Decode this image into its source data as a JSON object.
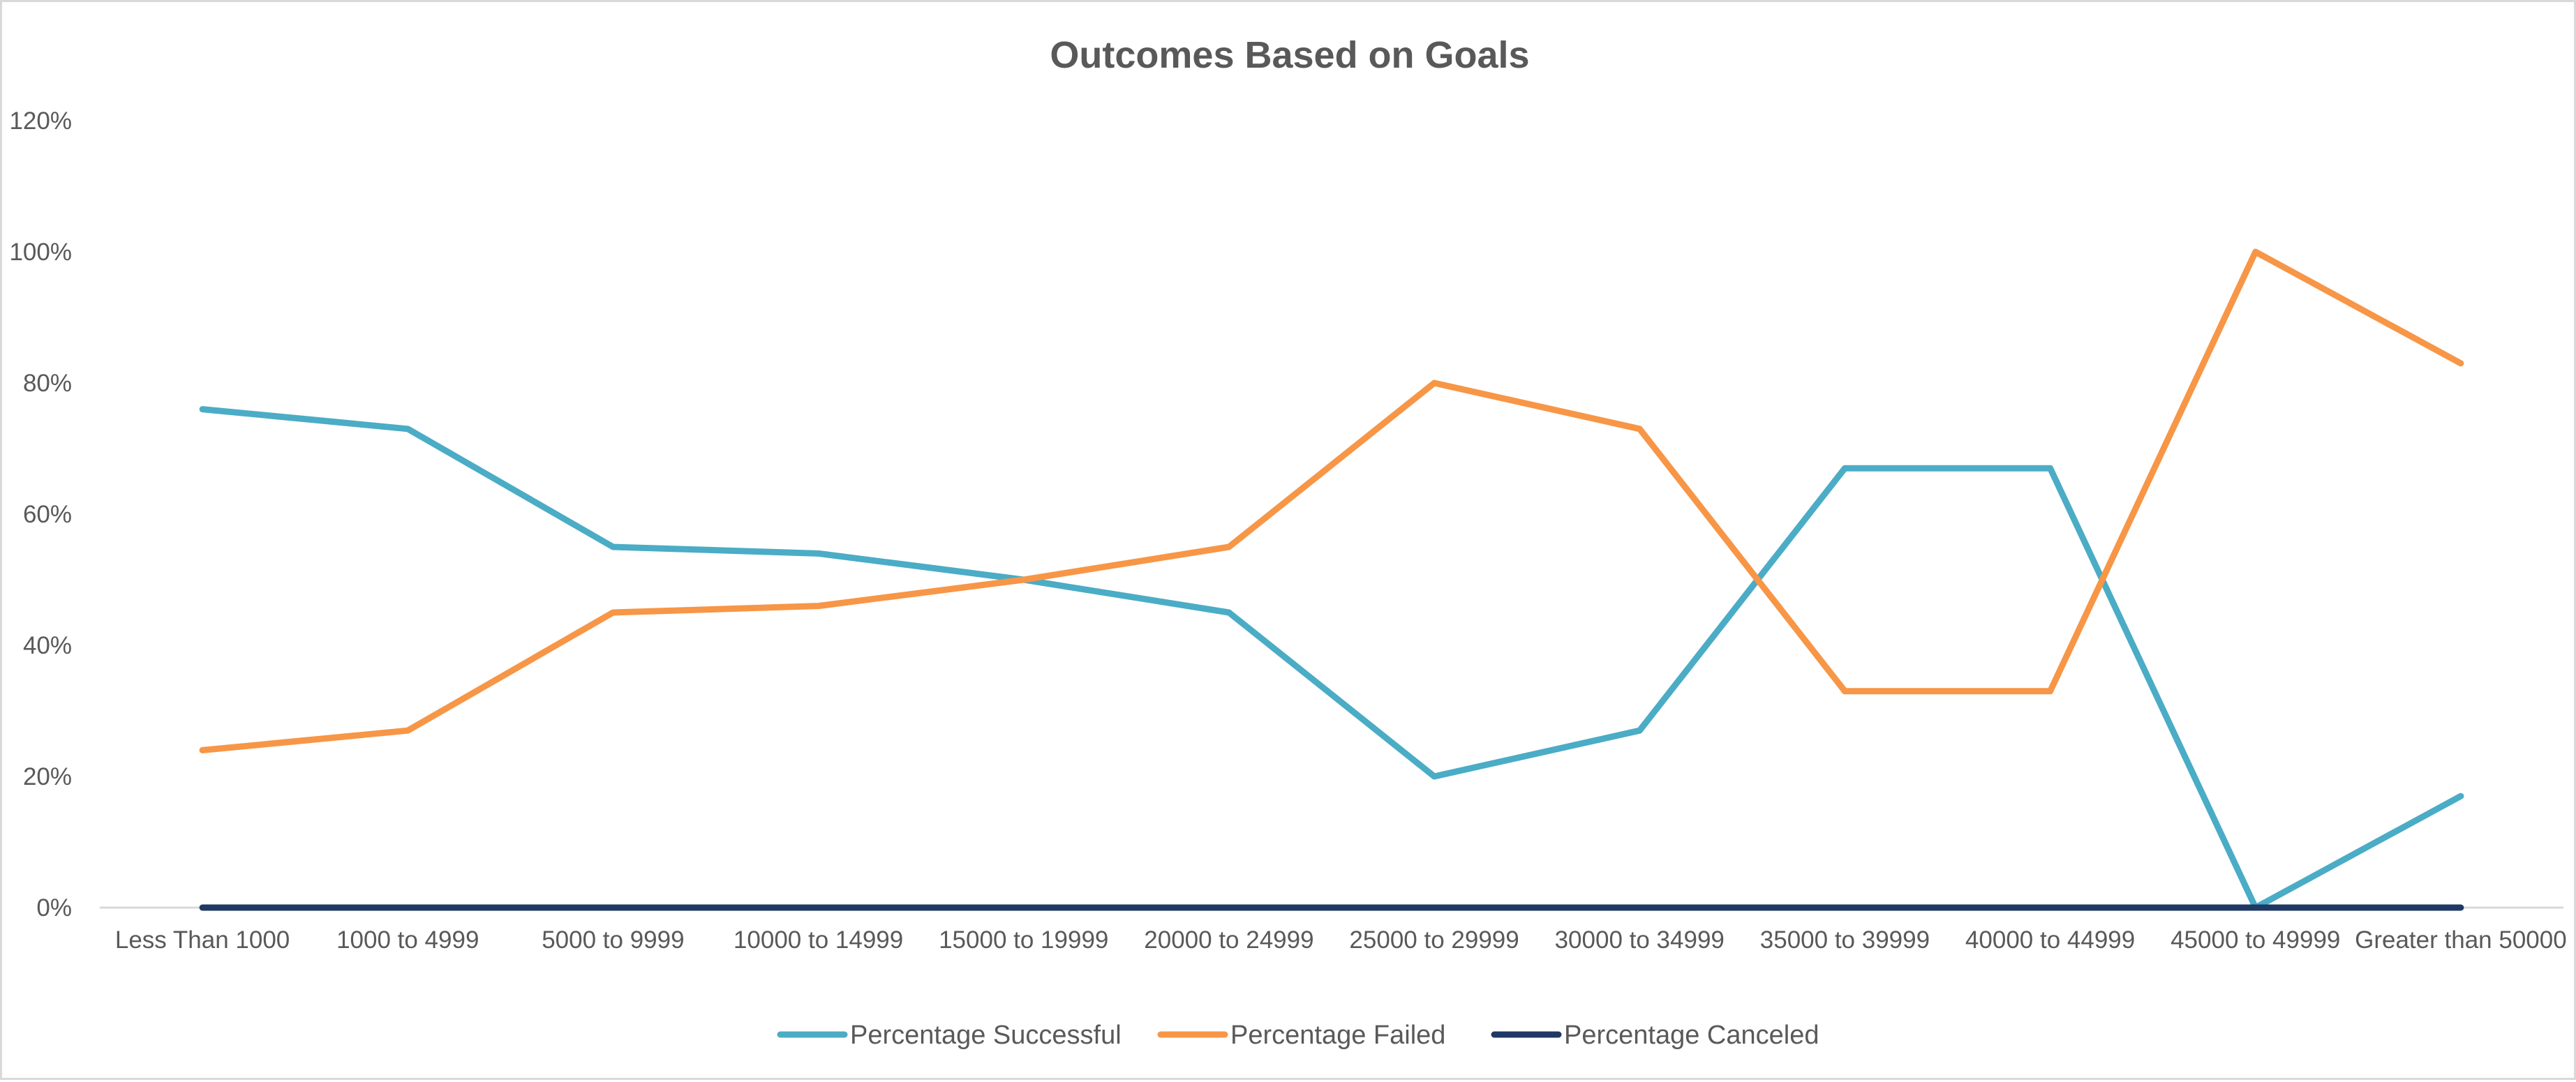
{
  "chart_data": {
    "type": "line",
    "title": "Outcomes Based on Goals",
    "xlabel": "",
    "ylabel": "",
    "categories": [
      "Less Than 1000",
      "1000 to 4999",
      "5000 to 9999",
      "10000 to 14999",
      "15000 to 19999",
      "20000 to 24999",
      "25000 to 29999",
      "30000 to 34999",
      "35000 to 39999",
      "40000 to 44999",
      "45000 to 49999",
      "Greater than 50000"
    ],
    "ylim": [
      0,
      1.2
    ],
    "yticks": [
      0,
      0.2,
      0.4,
      0.6,
      0.8,
      1.0,
      1.2
    ],
    "ytick_labels": [
      "0%",
      "20%",
      "40%",
      "60%",
      "80%",
      "100%",
      "120%"
    ],
    "grid": false,
    "legend_position": "bottom",
    "series": [
      {
        "name": "Percentage Successful",
        "color": "#4bacc6",
        "values": [
          0.76,
          0.73,
          0.55,
          0.54,
          0.5,
          0.45,
          0.2,
          0.27,
          0.67,
          0.67,
          0.0,
          0.17
        ]
      },
      {
        "name": "Percentage Failed",
        "color": "#f79646",
        "values": [
          0.24,
          0.27,
          0.45,
          0.46,
          0.5,
          0.55,
          0.8,
          0.73,
          0.33,
          0.33,
          1.0,
          0.83
        ]
      },
      {
        "name": "Percentage Canceled",
        "color": "#1f3864",
        "values": [
          0,
          0,
          0,
          0,
          0,
          0,
          0,
          0,
          0,
          0,
          0,
          0
        ]
      }
    ]
  }
}
